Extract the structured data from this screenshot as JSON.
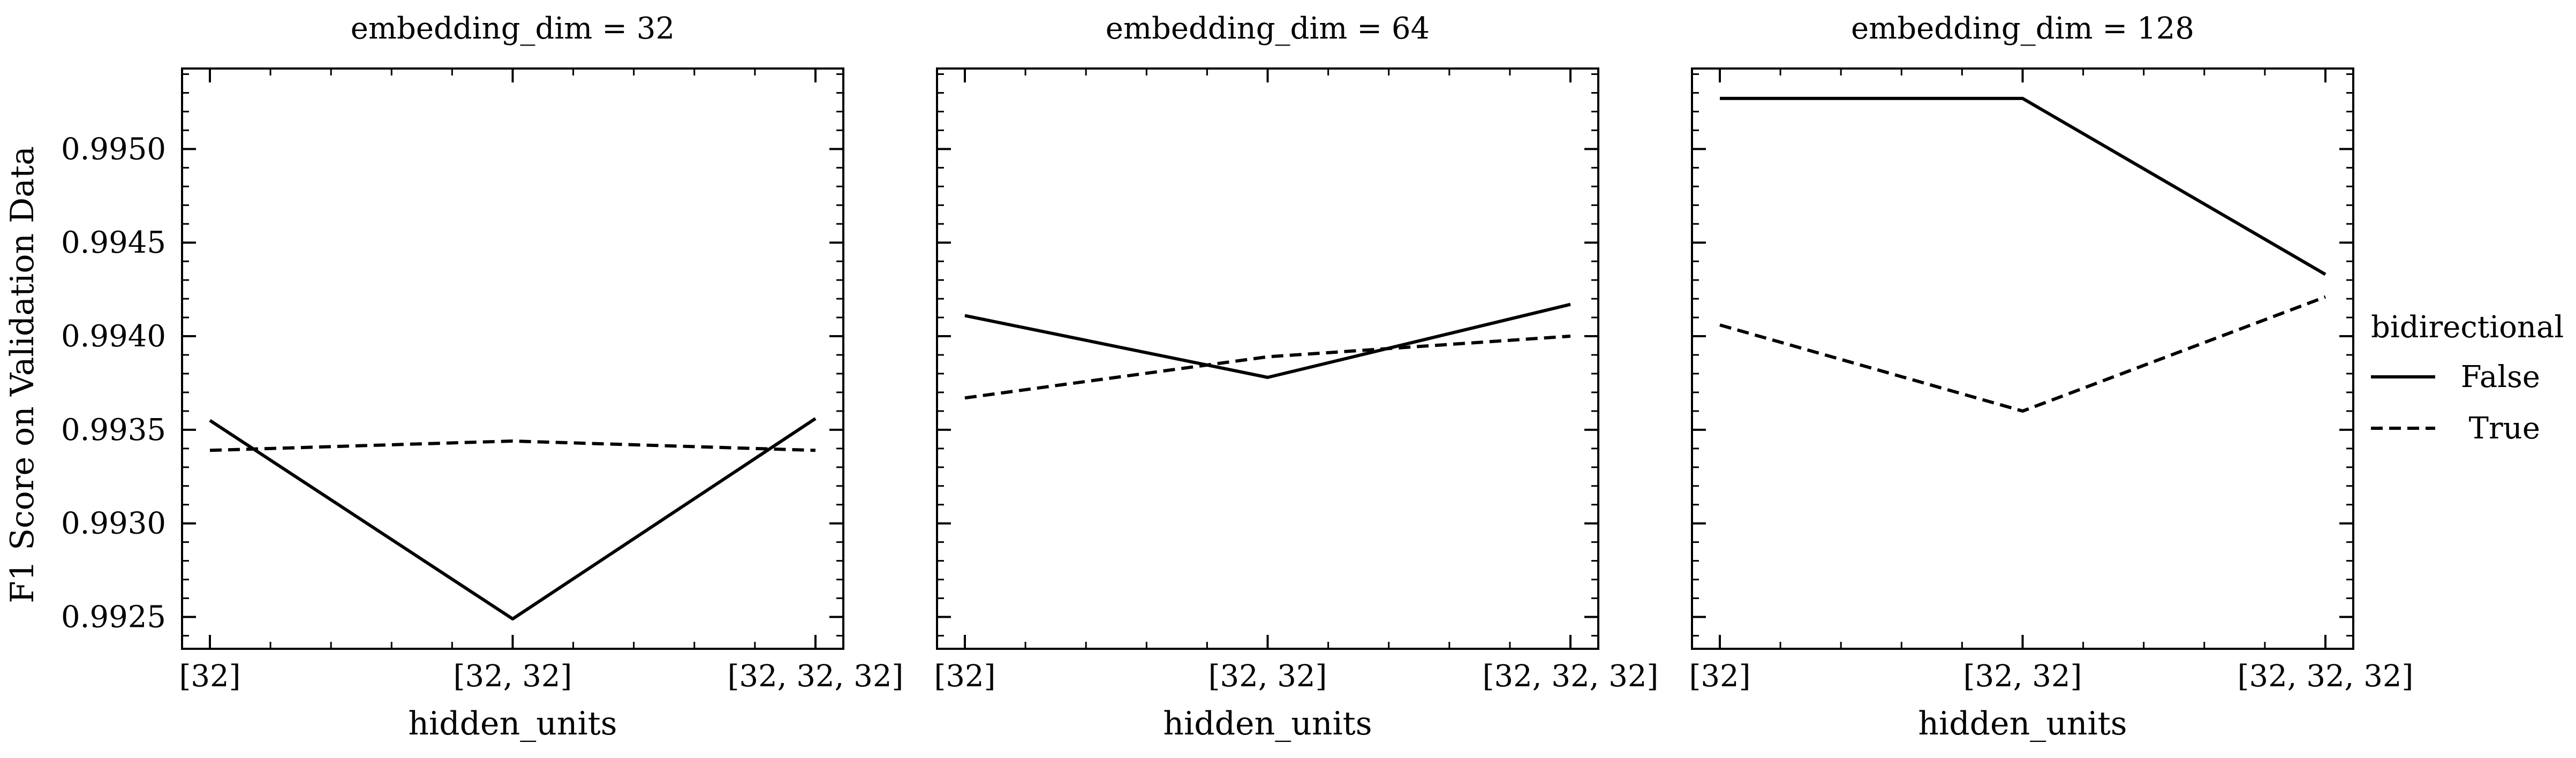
{
  "chart_data": {
    "type": "line",
    "ylabel": "F1 Score on Validation Data",
    "ylim": [
      0.99233,
      0.99543
    ],
    "yticks": [
      0.9925,
      0.993,
      0.9935,
      0.994,
      0.9945,
      0.995
    ],
    "ytick_labels": [
      "0.9925",
      "0.9930",
      "0.9935",
      "0.9940",
      "0.9945",
      "0.9950"
    ],
    "categories": [
      "[32]",
      "[32, 32]",
      "[32, 32, 32]"
    ],
    "legend": {
      "title": "bidirectional",
      "placement": "right",
      "entries": [
        {
          "name": "False",
          "style": "solid"
        },
        {
          "name": "True",
          "style": "dashed"
        }
      ]
    },
    "panels": [
      {
        "title": "embedding_dim = 32",
        "xlabel": "hidden_units",
        "series": [
          {
            "name": "False",
            "values": [
              0.99355,
              0.99249,
              0.99356
            ]
          },
          {
            "name": "True",
            "values": [
              0.99339,
              0.99344,
              0.99339
            ]
          }
        ]
      },
      {
        "title": "embedding_dim = 64",
        "xlabel": "hidden_units",
        "series": [
          {
            "name": "False",
            "values": [
              0.99411,
              0.99378,
              0.99417
            ]
          },
          {
            "name": "True",
            "values": [
              0.99367,
              0.99389,
              0.994
            ]
          }
        ]
      },
      {
        "title": "embedding_dim = 128",
        "xlabel": "hidden_units",
        "series": [
          {
            "name": "False",
            "values": [
              0.99527,
              0.99527,
              0.99433
            ]
          },
          {
            "name": "True",
            "values": [
              0.99406,
              0.9936,
              0.99421
            ]
          }
        ]
      }
    ]
  }
}
